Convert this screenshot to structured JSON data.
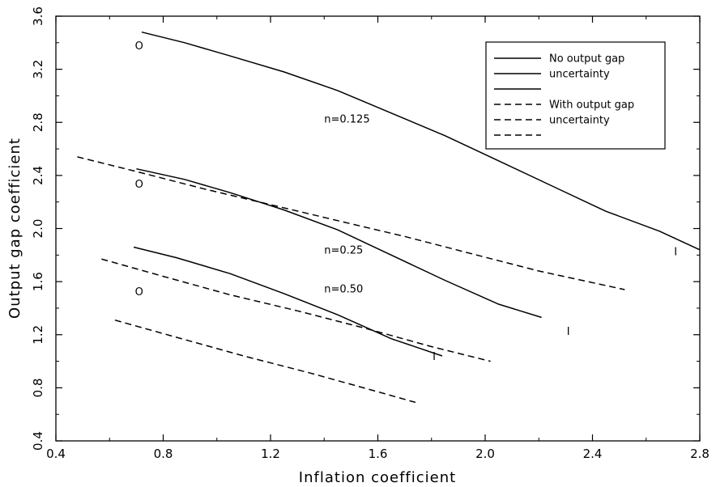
{
  "chart_data": {
    "type": "line",
    "title": "",
    "xlabel": "Inflation coefficient",
    "ylabel": "Output gap coefficient",
    "xlim": [
      0.4,
      2.8
    ],
    "ylim": [
      0.4,
      3.6
    ],
    "x_ticks": [
      "0.4",
      "0.8",
      "1.2",
      "1.6",
      "2.0",
      "2.4",
      "2.8"
    ],
    "y_ticks": [
      "0.4",
      "0.8",
      "1.2",
      "1.6",
      "2.0",
      "2.4",
      "2.8",
      "3.2",
      "3.6"
    ],
    "grid": false,
    "legend_position": "top-right",
    "legend": [
      {
        "label": "No output gap",
        "style": "solid"
      },
      {
        "label": "uncertainty",
        "style": "solid"
      },
      {
        "label": "",
        "style": "solid"
      },
      {
        "label": "With output gap",
        "style": "dashed"
      },
      {
        "label": "uncertainty",
        "style": "dashed"
      },
      {
        "label": "",
        "style": "dashed"
      }
    ],
    "series": [
      {
        "style": "solid",
        "group": "n=0.125",
        "x": [
          0.72,
          0.88,
          1.05,
          1.25,
          1.45,
          1.65,
          1.85,
          2.05,
          2.25,
          2.45,
          2.65,
          2.8
        ],
        "y": [
          3.48,
          3.4,
          3.3,
          3.18,
          3.04,
          2.87,
          2.7,
          2.51,
          2.32,
          2.13,
          1.98,
          1.84
        ]
      },
      {
        "style": "solid",
        "group": "n=0.25",
        "x": [
          0.7,
          0.88,
          1.05,
          1.25,
          1.45,
          1.65,
          1.85,
          2.05,
          2.21
        ],
        "y": [
          2.45,
          2.37,
          2.27,
          2.14,
          1.99,
          1.8,
          1.61,
          1.43,
          1.33
        ]
      },
      {
        "style": "solid",
        "group": "n=0.50",
        "x": [
          0.69,
          0.85,
          1.05,
          1.25,
          1.45,
          1.65,
          1.84
        ],
        "y": [
          1.86,
          1.78,
          1.66,
          1.51,
          1.35,
          1.17,
          1.04
        ]
      },
      {
        "style": "dashed",
        "group": "n=0.125",
        "x": [
          0.48,
          0.7,
          0.95,
          1.2,
          1.45,
          1.7,
          1.95,
          2.2,
          2.52
        ],
        "y": [
          2.54,
          2.43,
          2.3,
          2.18,
          2.06,
          1.94,
          1.81,
          1.68,
          1.54
        ]
      },
      {
        "style": "dashed",
        "group": "n=0.25",
        "x": [
          0.57,
          0.8,
          1.05,
          1.3,
          1.55,
          1.8,
          2.02
        ],
        "y": [
          1.77,
          1.64,
          1.5,
          1.38,
          1.25,
          1.11,
          1.0
        ]
      },
      {
        "style": "dashed",
        "group": "n=0.50",
        "x": [
          0.62,
          0.85,
          1.1,
          1.35,
          1.6,
          1.74
        ],
        "y": [
          1.31,
          1.18,
          1.04,
          0.91,
          0.77,
          0.69
        ]
      }
    ],
    "annotations": [
      {
        "text": "n=0.125",
        "x": 1.4,
        "y": 2.8
      },
      {
        "text": "n=0.25",
        "x": 1.4,
        "y": 1.81
      },
      {
        "text": "n=0.50",
        "x": 1.4,
        "y": 1.52
      }
    ],
    "markers": [
      {
        "symbol": "O",
        "x": 0.71,
        "y": 3.37
      },
      {
        "symbol": "O",
        "x": 0.71,
        "y": 2.33
      },
      {
        "symbol": "O",
        "x": 0.71,
        "y": 1.52
      },
      {
        "symbol": "I",
        "x": 2.71,
        "y": 1.82
      },
      {
        "symbol": "I",
        "x": 2.31,
        "y": 1.22
      },
      {
        "symbol": "I",
        "x": 1.81,
        "y": 1.03
      }
    ]
  }
}
